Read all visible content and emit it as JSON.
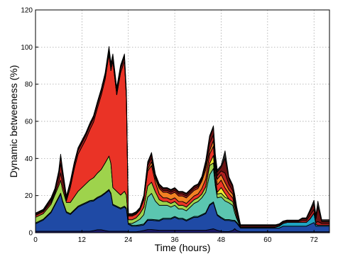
{
  "chart_data": {
    "type": "area",
    "stacked": true,
    "xlabel": "Time (hours)",
    "ylabel": "Dynamic betweeness (%)",
    "xlim": [
      0,
      76
    ],
    "ylim": [
      0,
      120
    ],
    "xticks": [
      0,
      12,
      24,
      36,
      48,
      60,
      72
    ],
    "yticks": [
      0,
      20,
      40,
      60,
      80,
      100,
      120
    ],
    "grid": true,
    "x": [
      0,
      2,
      4,
      5,
      6,
      6.5,
      7,
      8,
      9,
      10,
      11,
      12,
      13,
      14,
      15,
      16,
      17,
      18,
      19,
      19.5,
      20,
      21,
      22,
      23,
      23.5,
      24,
      25,
      26,
      27,
      28,
      29,
      30,
      31,
      32,
      33,
      34,
      35,
      36,
      37,
      38,
      39,
      40,
      41,
      42,
      43,
      44,
      45,
      46,
      46.5,
      47,
      48,
      49,
      50,
      51,
      51.5,
      52,
      53,
      54,
      55,
      56,
      57,
      58,
      59,
      60,
      61,
      62,
      63,
      64,
      65,
      66,
      67,
      68,
      69,
      70,
      71,
      72,
      72.5,
      73,
      74,
      75,
      76
    ],
    "series": [
      {
        "color": "#1c1a66",
        "values": [
          0.8,
          0.8,
          0.8,
          0.8,
          0.8,
          0.8,
          0.8,
          0.8,
          0.8,
          0.8,
          0.8,
          0.8,
          0.8,
          0.8,
          1.1,
          1.6,
          1.6,
          1.1,
          0.8,
          0.8,
          0.8,
          0.8,
          0.8,
          0.8,
          0.8,
          0.5,
          0.5,
          0.5,
          0.8,
          1.2,
          1.7,
          1.7,
          1.5,
          1.3,
          1.3,
          1.3,
          1.3,
          1.3,
          1.3,
          1.3,
          1.3,
          1.3,
          1.3,
          1.3,
          1.3,
          1.3,
          1.7,
          2.1,
          1.7,
          1.3,
          0.8,
          0.6,
          0.6,
          1.2,
          2.2,
          1.2,
          0.5,
          0.5,
          0.5,
          0.5,
          0.5,
          0.5,
          0.5,
          0.5,
          0.5,
          0.5,
          0.5,
          0.5,
          0.5,
          0.5,
          0.5,
          0.5,
          0.5,
          0.5,
          0.5,
          0.5,
          0.5,
          0.5,
          0.5,
          0.5,
          0.5
        ]
      },
      {
        "color": "#1f4aa5",
        "values": [
          4,
          6,
          10,
          14,
          18,
          20,
          16,
          10,
          9,
          11,
          13,
          14,
          15,
          16,
          16,
          17,
          18,
          20,
          22,
          20,
          14,
          13,
          12,
          13,
          12,
          4,
          3,
          3,
          3,
          3,
          5,
          5,
          5,
          5,
          6,
          6,
          6,
          7,
          6,
          6,
          5,
          6,
          7,
          7,
          8,
          9,
          13,
          14,
          11,
          8,
          7,
          6,
          6,
          5,
          4,
          4,
          2,
          2,
          2,
          2,
          2,
          2,
          2,
          2,
          2,
          2,
          2,
          3,
          3,
          3,
          3,
          3,
          3,
          3,
          4,
          5,
          3,
          3,
          3,
          3,
          3
        ]
      },
      {
        "color": "#1ea3c2",
        "values": [
          0.5,
          0.5,
          0.5,
          0.5,
          0.5,
          0.5,
          0.5,
          0.5,
          0.5,
          0.5,
          0.5,
          0.5,
          0.5,
          0.5,
          0.5,
          0.5,
          0.5,
          0.5,
          0.5,
          0.5,
          0.5,
          0.5,
          0.5,
          0.5,
          0.5,
          0.5,
          0.5,
          0.5,
          0.5,
          0.5,
          0.5,
          0.5,
          0.5,
          0.5,
          0.5,
          0.5,
          0.5,
          0.5,
          0.5,
          0.5,
          0.5,
          0.5,
          0.5,
          0.5,
          0.5,
          0.5,
          0.5,
          0.5,
          0.5,
          0.5,
          0.5,
          0.5,
          0.5,
          0.5,
          0.5,
          0.5,
          0.5,
          0.5,
          0.5,
          0.5,
          0.5,
          0.5,
          0.5,
          0.5,
          0.5,
          0.5,
          1,
          1.5,
          2,
          2,
          2,
          2,
          2,
          2,
          3,
          5,
          1,
          0.5,
          0.5,
          0.5,
          0.5
        ]
      },
      {
        "color": "#5bc6b0",
        "values": [
          0,
          0,
          0,
          0,
          0,
          0,
          0,
          0,
          0,
          0,
          0,
          0,
          0,
          0,
          0,
          0,
          0,
          0,
          0,
          0,
          0,
          0,
          0,
          0,
          0,
          0,
          1,
          2,
          3,
          5,
          12,
          14,
          10,
          8,
          7,
          7,
          6,
          6,
          5,
          5,
          5,
          6,
          7,
          8,
          9,
          11,
          16,
          18,
          12,
          9,
          11,
          10,
          9,
          8,
          4,
          2,
          0,
          0,
          0,
          0,
          0,
          0,
          0,
          0,
          0,
          0,
          0,
          0,
          0,
          0,
          0,
          0,
          0,
          0,
          0,
          0,
          0,
          0,
          0,
          0,
          0
        ]
      },
      {
        "color": "#9ed34c",
        "values": [
          3,
          3,
          4,
          5,
          6,
          7,
          6,
          5,
          6,
          7,
          8,
          9,
          10,
          11,
          12,
          13,
          14,
          16,
          18,
          16,
          9,
          8,
          7,
          8,
          7,
          2,
          2,
          2,
          3,
          4,
          6,
          6,
          5,
          3,
          2,
          2,
          2,
          2,
          2,
          2,
          2,
          2,
          2,
          2,
          2,
          3,
          5,
          3,
          2,
          2,
          2,
          2,
          2,
          2,
          2,
          1,
          0,
          0,
          0,
          0,
          0,
          0,
          0,
          0,
          0,
          0,
          0,
          0,
          0,
          0,
          0,
          0,
          0,
          0,
          0,
          0,
          0,
          0,
          0,
          0,
          0
        ]
      },
      {
        "color": "#f0e832",
        "values": [
          0,
          0,
          0,
          0,
          0,
          0,
          0,
          0,
          0,
          0,
          0,
          0,
          0,
          0,
          0,
          0,
          0,
          0,
          0,
          0,
          0,
          0,
          0,
          0,
          0,
          0,
          0,
          0,
          0,
          0,
          0,
          0,
          0,
          0,
          0,
          0,
          0,
          0,
          0,
          0,
          0,
          0,
          0,
          0,
          0,
          0,
          1,
          4,
          2,
          1,
          3,
          2,
          0,
          0,
          0,
          0,
          0,
          0,
          0,
          0,
          0,
          0,
          0,
          0,
          0,
          0,
          0,
          0,
          0,
          0,
          0,
          0,
          0,
          0,
          0,
          0,
          0,
          0,
          0,
          0,
          0
        ]
      },
      {
        "color": "#ea3326",
        "values": [
          1,
          1,
          1,
          1,
          2,
          4,
          3,
          1,
          8,
          15,
          20,
          22,
          24,
          27,
          30,
          35,
          40,
          45,
          55,
          50,
          68,
          52,
          66,
          70,
          52,
          2,
          2,
          2,
          2,
          4,
          8,
          9,
          5,
          3,
          2,
          2,
          2,
          2,
          2,
          2,
          2,
          2,
          2,
          2,
          3,
          4,
          5,
          5,
          4,
          4,
          4,
          3,
          3,
          2,
          2,
          2,
          0,
          0,
          0,
          0,
          0,
          0,
          0,
          0,
          0,
          0,
          0,
          0,
          0,
          0,
          0,
          0,
          0,
          0,
          0,
          0,
          0,
          0,
          0,
          0,
          0
        ]
      },
      {
        "color": "#f28023",
        "values": [
          0,
          0,
          0,
          0,
          0,
          0,
          0,
          0,
          0,
          0,
          0,
          0,
          0,
          0,
          0,
          0,
          0,
          0,
          0,
          0,
          0,
          0,
          0,
          0,
          0,
          0,
          0,
          0,
          0,
          0,
          1,
          2,
          2,
          3,
          3,
          3,
          3,
          3,
          3,
          3,
          3,
          3,
          3,
          3,
          4,
          5,
          2,
          3,
          3,
          3,
          3,
          3,
          2,
          2,
          1,
          1,
          0,
          0,
          0,
          0,
          0,
          0,
          0,
          0,
          0,
          0,
          0,
          0,
          0,
          0,
          0,
          0,
          0,
          0,
          0,
          0,
          0,
          0,
          0,
          0,
          0
        ]
      },
      {
        "color": "#b02020",
        "values": [
          0.5,
          0.5,
          1,
          1,
          3,
          5,
          4,
          1,
          2,
          2,
          2,
          2,
          2,
          2,
          2,
          2,
          2,
          2,
          2,
          2,
          2,
          2,
          2,
          2,
          2,
          0.5,
          0.5,
          0.5,
          0.5,
          1,
          2,
          2,
          1,
          1,
          1,
          1,
          1,
          1,
          1,
          1,
          1,
          1,
          1,
          1,
          1,
          2,
          4,
          3,
          2,
          2,
          2,
          5,
          3,
          2,
          2,
          1,
          0.5,
          0.5,
          0.5,
          0.5,
          0.5,
          0.5,
          0.5,
          0.5,
          0.5,
          0.5,
          0.5,
          0.5,
          0.5,
          0.5,
          0.5,
          0.5,
          1,
          1,
          2,
          2,
          1,
          2,
          1,
          1,
          1
        ]
      },
      {
        "color": "#6b1212",
        "values": [
          0.5,
          0.5,
          1,
          1,
          2,
          4,
          3,
          1,
          1,
          1,
          1,
          1,
          1,
          1,
          1,
          1,
          1,
          1,
          1,
          1,
          1,
          1,
          1,
          1,
          1,
          0.5,
          0.5,
          0.5,
          0.5,
          1,
          1,
          2,
          1,
          1,
          1,
          1,
          1,
          1,
          1,
          1,
          1,
          1,
          1,
          1,
          1,
          2,
          3,
          4,
          3,
          2,
          2,
          8,
          3,
          2,
          2,
          1,
          0.5,
          0.5,
          0.5,
          0.5,
          0.5,
          0.5,
          0.5,
          0.5,
          0.5,
          0.5,
          0.5,
          0.5,
          0.5,
          0.5,
          0.5,
          0.5,
          1,
          1,
          2,
          3,
          2,
          8,
          1,
          1,
          1
        ]
      },
      {
        "color": "#262626",
        "values": [
          0.3,
          0.3,
          0.5,
          0.5,
          1,
          1,
          1,
          0.5,
          0.5,
          0.5,
          0.5,
          0.5,
          0.5,
          0.5,
          0.5,
          0.5,
          0.5,
          0.5,
          1,
          1,
          1,
          1,
          1,
          1,
          1,
          0.3,
          0.3,
          0.3,
          0.3,
          0.5,
          1,
          1,
          0.5,
          0.5,
          0.5,
          0.5,
          0.5,
          0.5,
          0.5,
          0.5,
          0.5,
          0.5,
          0.5,
          0.5,
          0.5,
          1,
          1,
          1,
          1,
          1,
          1,
          4,
          1,
          1,
          1,
          0.5,
          0.3,
          0.3,
          0.3,
          0.3,
          0.3,
          0.3,
          0.3,
          0.3,
          0.3,
          0.3,
          0.3,
          0.3,
          0.3,
          0.3,
          0.3,
          0.3,
          0.5,
          0.5,
          1,
          2,
          2,
          3,
          1,
          1,
          1
        ]
      }
    ]
  }
}
